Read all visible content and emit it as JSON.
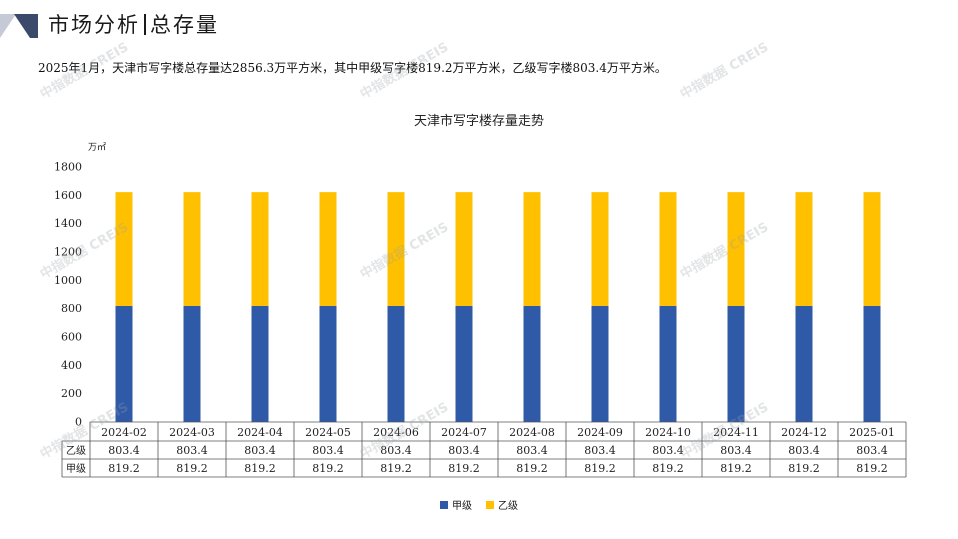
{
  "header": {
    "title_left": "市场分析",
    "title_right": "总存量"
  },
  "summary": "2025年1月，天津市写字楼总存量达2856.3万平方米，其中甲级写字楼819.2万平方米，乙级写字楼803.4万平方米。",
  "watermark_text": "中指数据 CREIS",
  "colors": {
    "jia": "#2e5aa8",
    "yi": "#ffc000",
    "corner_dark": "#3b4a6b",
    "corner_light": "#c5cad6"
  },
  "chart_data": {
    "type": "bar",
    "stacked": true,
    "title": "天津市写字楼存量走势",
    "unit": "万㎡",
    "ylim": [
      0,
      1800
    ],
    "yticks": [
      0,
      200,
      400,
      600,
      800,
      1000,
      1200,
      1400,
      1600,
      1800
    ],
    "categories": [
      "2024-02",
      "2024-03",
      "2024-04",
      "2024-05",
      "2024-06",
      "2024-07",
      "2024-08",
      "2024-09",
      "2024-10",
      "2024-11",
      "2024-12",
      "2025-01"
    ],
    "series": [
      {
        "name": "甲级",
        "color": "#2e5aa8",
        "values": [
          819.2,
          819.2,
          819.2,
          819.2,
          819.2,
          819.2,
          819.2,
          819.2,
          819.2,
          819.2,
          819.2,
          819.2
        ],
        "labels": [
          "819.2",
          "819.2",
          "819.2",
          "819.2",
          "819.2",
          "819.2",
          "819.2",
          "819.2",
          "819.2",
          "819.2",
          "819.2",
          "819.2"
        ]
      },
      {
        "name": "乙级",
        "color": "#ffc000",
        "values": [
          803.4,
          803.4,
          803.4,
          803.4,
          803.4,
          803.4,
          803.4,
          803.4,
          803.4,
          803.4,
          803.4,
          803.4
        ],
        "labels": [
          "803.4",
          "803.4",
          "803.4",
          "803.4",
          "803.4",
          "803.4",
          "803.4",
          "803.4",
          "803.4",
          "803.4",
          "803.4",
          "803.4"
        ]
      }
    ],
    "table_rows": [
      "乙级",
      "甲级"
    ],
    "legend": [
      "甲级",
      "乙级"
    ],
    "legend_position": "bottom",
    "grid": false
  }
}
